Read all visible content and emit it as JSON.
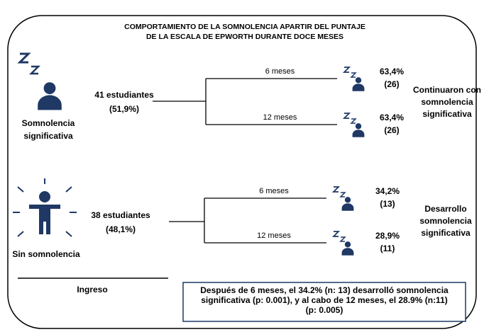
{
  "title": [
    "COMPORTAMIENTO DE LA SOMNOLENCIA APARTIR DEL PUNTAJE",
    "DE LA ESCALA DE EPWORTH DURANTE DOCE MESES"
  ],
  "groups": [
    {
      "label": [
        "Somnolencia",
        "significativa"
      ],
      "count": "41 estudiantes",
      "percent": "(51,9%)",
      "branches": [
        {
          "label": "6 meses",
          "percent": "63,4%",
          "n": "(26)"
        },
        {
          "label": "12 meses",
          "percent": "63,4%",
          "n": "(26)"
        }
      ],
      "outcome": [
        "Continuaron con",
        "somnolencia",
        "significativa"
      ]
    },
    {
      "label": [
        "Sin somnolencia"
      ],
      "count": "38 estudiantes",
      "percent": "(48,1%)",
      "branches": [
        {
          "label": "6 meses",
          "percent": "34,2%",
          "n": "(13)"
        },
        {
          "label": "12 meses",
          "percent": "28,9%",
          "n": "(11)"
        }
      ],
      "outcome": [
        "Desarrollo",
        "somnolencia",
        "significativa"
      ]
    }
  ],
  "baseline": "Ingreso",
  "note": [
    "Después de 6 meses, el 34.2% (n: 13) desarrolló somnolencia",
    "significativa (p: 0.001), y al cabo de 12 meses, el 28.9% (n:11)",
    "(p: 0.005)"
  ]
}
